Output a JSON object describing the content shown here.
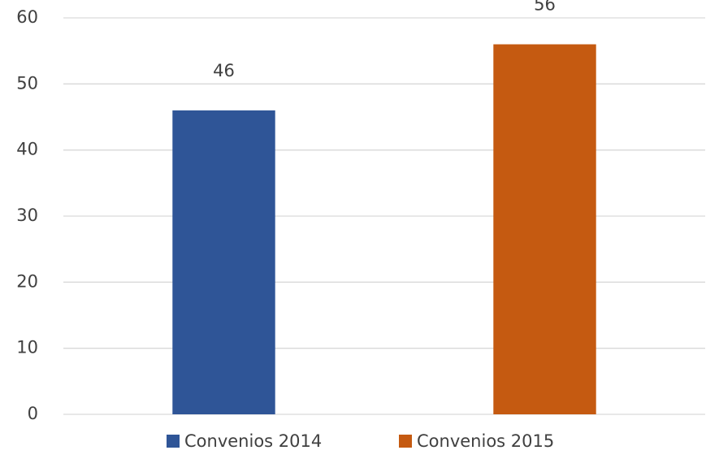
{
  "chart_data": {
    "type": "bar",
    "categories": [
      null,
      null
    ],
    "series": [
      {
        "name": "Convenios 2014",
        "color": "#2f5597",
        "values": [
          46,
          null
        ]
      },
      {
        "name": "Convenios 2015",
        "color": "#c55a11",
        "values": [
          null,
          56
        ]
      }
    ],
    "ylim": [
      0,
      60
    ],
    "yticks": [
      0,
      10,
      20,
      30,
      40,
      50,
      60
    ],
    "grid": true,
    "legend": "bottom"
  }
}
